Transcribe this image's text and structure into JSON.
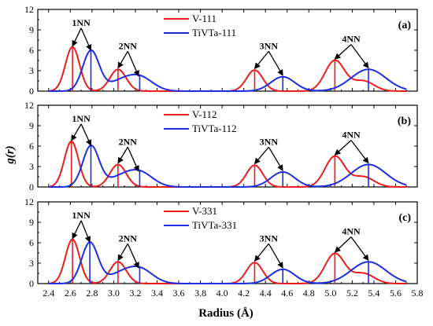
{
  "figure": {
    "xlabel": "Radius (Å)",
    "ylabel": "g(r)"
  },
  "colors": {
    "red": "#ee1c1c",
    "blue": "#1c2ee0",
    "axis": "#000000"
  },
  "chart_data": [
    {
      "type": "line",
      "panel_label": "(a)",
      "xlim": [
        2.3,
        5.8
      ],
      "ylim": [
        0,
        12
      ],
      "xticks": [
        2.4,
        2.6,
        2.8,
        3.0,
        3.2,
        3.4,
        3.6,
        3.8,
        4.0,
        4.2,
        4.4,
        4.6,
        4.8,
        5.0,
        5.2,
        5.4,
        5.6,
        5.8
      ],
      "yticks": [
        0,
        3,
        6,
        9,
        12
      ],
      "legend_position": "top-center",
      "series": [
        {
          "name": "V-111",
          "color": "#ee1c1c",
          "peaks": [
            {
              "x": 2.62,
              "y": 6.5,
              "w": 0.065
            },
            {
              "x": 3.04,
              "y": 3.2,
              "w": 0.075
            },
            {
              "x": 4.3,
              "y": 3.1,
              "w": 0.075
            },
            {
              "x": 5.04,
              "y": 4.5,
              "w": 0.09
            },
            {
              "x": 5.3,
              "y": 1.5,
              "w": 0.1
            }
          ]
        },
        {
          "name": "TiVTa-111",
          "color": "#1c2ee0",
          "peaks": [
            {
              "x": 2.79,
              "y": 5.9,
              "w": 0.075
            },
            {
              "x": 3.05,
              "y": 1.2,
              "w": 0.12
            },
            {
              "x": 3.24,
              "y": 2.0,
              "w": 0.12
            },
            {
              "x": 4.56,
              "y": 2.1,
              "w": 0.11
            },
            {
              "x": 5.35,
              "y": 3.2,
              "w": 0.16
            }
          ]
        }
      ],
      "annotations": [
        {
          "text": "1NN",
          "x": 2.7,
          "y": 9.6,
          "arrows_to": [
            [
              2.62,
              6.6
            ],
            [
              2.79,
              6.0
            ]
          ]
        },
        {
          "text": "2NN",
          "x": 3.13,
          "y": 6.2,
          "arrows_to": [
            [
              3.04,
              3.4
            ],
            [
              3.23,
              2.2
            ]
          ]
        },
        {
          "text": "3NN",
          "x": 4.43,
          "y": 6.2,
          "arrows_to": [
            [
              4.3,
              3.3
            ],
            [
              4.56,
              2.3
            ]
          ]
        },
        {
          "text": "4NN",
          "x": 5.19,
          "y": 7.2,
          "arrows_to": [
            [
              5.04,
              4.7
            ],
            [
              5.35,
              3.4
            ]
          ]
        }
      ]
    },
    {
      "type": "line",
      "panel_label": "(b)",
      "xlim": [
        2.3,
        5.8
      ],
      "ylim": [
        0,
        12
      ],
      "xticks": [
        2.4,
        2.6,
        2.8,
        3.0,
        3.2,
        3.4,
        3.6,
        3.8,
        4.0,
        4.2,
        4.4,
        4.6,
        4.8,
        5.0,
        5.2,
        5.4,
        5.6,
        5.8
      ],
      "yticks": [
        0,
        3,
        6,
        9,
        12
      ],
      "legend_position": "top-center",
      "series": [
        {
          "name": "V-112",
          "color": "#ee1c1c",
          "peaks": [
            {
              "x": 2.61,
              "y": 6.7,
              "w": 0.065
            },
            {
              "x": 3.04,
              "y": 3.3,
              "w": 0.075
            },
            {
              "x": 4.3,
              "y": 3.2,
              "w": 0.075
            },
            {
              "x": 5.04,
              "y": 4.5,
              "w": 0.09
            },
            {
              "x": 5.3,
              "y": 1.5,
              "w": 0.1
            }
          ]
        },
        {
          "name": "TiVTa-112",
          "color": "#1c2ee0",
          "peaks": [
            {
              "x": 2.79,
              "y": 6.0,
              "w": 0.075
            },
            {
              "x": 3.05,
              "y": 1.2,
              "w": 0.12
            },
            {
              "x": 3.24,
              "y": 2.1,
              "w": 0.12
            },
            {
              "x": 4.56,
              "y": 2.2,
              "w": 0.11
            },
            {
              "x": 5.35,
              "y": 3.3,
              "w": 0.16
            }
          ]
        }
      ],
      "annotations": [
        {
          "text": "1NN",
          "x": 2.7,
          "y": 9.6,
          "arrows_to": [
            [
              2.61,
              6.8
            ],
            [
              2.79,
              6.1
            ]
          ]
        },
        {
          "text": "2NN",
          "x": 3.13,
          "y": 6.2,
          "arrows_to": [
            [
              3.04,
              3.5
            ],
            [
              3.23,
              2.3
            ]
          ]
        },
        {
          "text": "3NN",
          "x": 4.43,
          "y": 6.2,
          "arrows_to": [
            [
              4.3,
              3.4
            ],
            [
              4.56,
              2.4
            ]
          ]
        },
        {
          "text": "4NN",
          "x": 5.19,
          "y": 7.2,
          "arrows_to": [
            [
              5.04,
              4.7
            ],
            [
              5.35,
              3.5
            ]
          ]
        }
      ]
    },
    {
      "type": "line",
      "panel_label": "(c)",
      "xlim": [
        2.3,
        5.8
      ],
      "ylim": [
        0,
        12
      ],
      "xticks": [
        2.4,
        2.6,
        2.8,
        3.0,
        3.2,
        3.4,
        3.6,
        3.8,
        4.0,
        4.2,
        4.4,
        4.6,
        4.8,
        5.0,
        5.2,
        5.4,
        5.6,
        5.8
      ],
      "yticks": [
        0,
        3,
        6,
        9,
        12
      ],
      "legend_position": "top-center",
      "series": [
        {
          "name": "V-331",
          "color": "#ee1c1c",
          "peaks": [
            {
              "x": 2.62,
              "y": 6.5,
              "w": 0.065
            },
            {
              "x": 3.04,
              "y": 3.2,
              "w": 0.075
            },
            {
              "x": 4.3,
              "y": 3.1,
              "w": 0.075
            },
            {
              "x": 5.04,
              "y": 4.4,
              "w": 0.09
            },
            {
              "x": 5.3,
              "y": 1.5,
              "w": 0.1
            }
          ]
        },
        {
          "name": "TiVTa-331",
          "color": "#1c2ee0",
          "peaks": [
            {
              "x": 2.78,
              "y": 6.0,
              "w": 0.075
            },
            {
              "x": 3.05,
              "y": 1.2,
              "w": 0.12
            },
            {
              "x": 3.24,
              "y": 2.1,
              "w": 0.12
            },
            {
              "x": 4.56,
              "y": 2.1,
              "w": 0.11
            },
            {
              "x": 5.35,
              "y": 3.2,
              "w": 0.16
            }
          ]
        }
      ],
      "annotations": [
        {
          "text": "1NN",
          "x": 2.7,
          "y": 9.6,
          "arrows_to": [
            [
              2.62,
              6.6
            ],
            [
              2.78,
              6.1
            ]
          ]
        },
        {
          "text": "2NN",
          "x": 3.13,
          "y": 6.2,
          "arrows_to": [
            [
              3.04,
              3.4
            ],
            [
              3.23,
              2.3
            ]
          ]
        },
        {
          "text": "3NN",
          "x": 4.43,
          "y": 6.2,
          "arrows_to": [
            [
              4.3,
              3.3
            ],
            [
              4.56,
              2.3
            ]
          ]
        },
        {
          "text": "4NN",
          "x": 5.19,
          "y": 7.2,
          "arrows_to": [
            [
              5.04,
              4.6
            ],
            [
              5.35,
              3.4
            ]
          ]
        }
      ]
    }
  ]
}
